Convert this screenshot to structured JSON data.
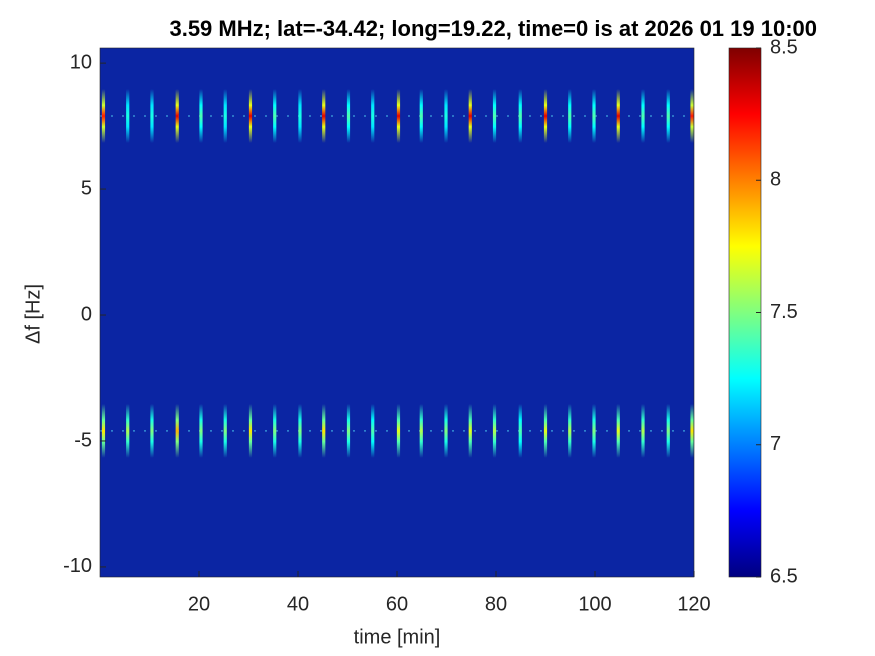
{
  "chart_data": {
    "type": "heatmap",
    "title": "3.59 MHz;  lat=-34.42; long=19.22, time=0 is at 2026 01 19 10:00",
    "x_label": "time [min]",
    "y_label": "Δf [Hz]",
    "xlim": [
      0,
      120
    ],
    "xticks": [
      20,
      40,
      60,
      80,
      100,
      120
    ],
    "ylim": [
      -10.4,
      10.6
    ],
    "yticks": [
      -10,
      -5,
      0,
      5,
      10
    ],
    "clim": [
      6.5,
      8.5
    ],
    "cticks": [
      6.5,
      7,
      7.5,
      8,
      8.5
    ],
    "colormap": "jet",
    "x": [
      0.7,
      5.6,
      10.5,
      15.6,
      20.4,
      25.3,
      30.4,
      35.3,
      40.4,
      45.2,
      50.2,
      55.1,
      60.3,
      64.9,
      69.9,
      74.8,
      79.7,
      84.9,
      90.0,
      94.9,
      99.8,
      104.7,
      109.7,
      114.8,
      119.6
    ],
    "rows": [
      {
        "freq": 7.9,
        "values": [
          8.2,
          7.3,
          7.3,
          8.3,
          7.4,
          7.3,
          8.3,
          7.4,
          7.3,
          8.3,
          7.4,
          7.3,
          8.3,
          7.4,
          7.3,
          8.3,
          7.4,
          7.4,
          8.3,
          7.4,
          7.4,
          8.3,
          7.4,
          7.4,
          8.2
        ]
      },
      {
        "freq": -4.6,
        "values": [
          7.8,
          7.6,
          7.5,
          7.9,
          7.5,
          7.5,
          7.8,
          7.5,
          7.5,
          7.8,
          7.5,
          7.4,
          7.7,
          7.6,
          7.5,
          7.7,
          7.6,
          7.4,
          7.7,
          7.6,
          7.5,
          7.7,
          7.6,
          7.5,
          7.8
        ]
      }
    ]
  }
}
